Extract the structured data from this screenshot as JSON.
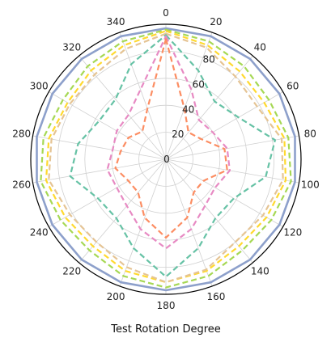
{
  "chart_data": {
    "type": "polar-line",
    "xlabel": "Test Rotation Degree",
    "angle_ticks": [
      "0",
      "20",
      "40",
      "60",
      "80",
      "100",
      "120",
      "140",
      "160",
      "180",
      "200",
      "220",
      "240",
      "260",
      "280",
      "300",
      "320",
      "340"
    ],
    "radial_ticks": [
      "0",
      "20",
      "40",
      "60",
      "80"
    ],
    "rlim": [
      0,
      100
    ],
    "grid": true,
    "angles": [
      0,
      20,
      40,
      60,
      80,
      100,
      120,
      140,
      160,
      180,
      200,
      220,
      240,
      260,
      280,
      300,
      320,
      340
    ],
    "series": [
      {
        "color": "#8da0cb",
        "dash": "solid",
        "values": [
          97,
          97,
          97,
          97,
          97,
          97,
          97,
          97,
          97,
          97,
          97,
          97,
          97,
          97,
          97,
          97,
          97,
          97
        ]
      },
      {
        "color": "#a6d854",
        "dash": "dashed",
        "values": [
          96,
          93,
          90,
          88,
          92,
          94,
          90,
          88,
          92,
          95,
          92,
          88,
          90,
          94,
          92,
          88,
          90,
          93
        ]
      },
      {
        "color": "#ffd92f",
        "dash": "dashed",
        "values": [
          95,
          90,
          85,
          84,
          89,
          90,
          86,
          84,
          88,
          91,
          88,
          84,
          86,
          90,
          88,
          84,
          86,
          90
        ]
      },
      {
        "color": "#e5c494",
        "dash": "dashed",
        "values": [
          93,
          88,
          80,
          78,
          87,
          88,
          83,
          80,
          87,
          91,
          85,
          80,
          82,
          88,
          86,
          82,
          82,
          87
        ]
      },
      {
        "color": "#66c2a5",
        "dash": "dashed",
        "values": [
          92,
          70,
          56,
          62,
          82,
          75,
          58,
          57,
          70,
          87,
          70,
          57,
          58,
          72,
          66,
          57,
          58,
          75
        ]
      },
      {
        "color": "#e78ac3",
        "dash": "dashed",
        "values": [
          91,
          55,
          38,
          40,
          46,
          48,
          42,
          45,
          55,
          66,
          55,
          45,
          42,
          44,
          40,
          42,
          43,
          55
        ]
      },
      {
        "color": "#fc8d62",
        "dash": "dashed",
        "values": [
          89,
          40,
          26,
          30,
          44,
          46,
          32,
          32,
          46,
          58,
          46,
          32,
          32,
          38,
          34,
          32,
          27,
          40
        ]
      }
    ]
  }
}
